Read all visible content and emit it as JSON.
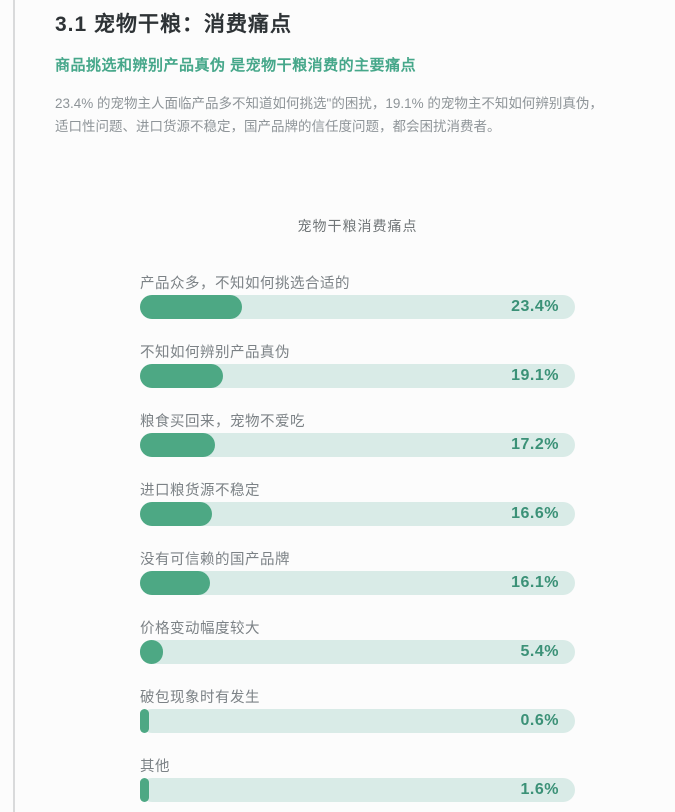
{
  "page": {
    "title": "3.1 宠物干粮：消费痛点",
    "subtitle": "商品挑选和辨别产品真伪 是宠物干粮消费的主要痛点",
    "body_line1": "23.4% 的宠物主人面临产品多不知道如何挑选\"的困扰，19.1% 的宠物主不知如何辨别真伪，",
    "body_line2": "适口性问题、进口货源不稳定，国产品牌的信任度问题，都会困扰消费者。"
  },
  "chart_data": {
    "type": "bar",
    "orientation": "horizontal",
    "title": "宠物干粮消费痛点",
    "categories": [
      "产品众多，不知如何挑选合适的",
      "不知如何辨别产品真伪",
      "粮食买回来，宠物不爱吃",
      "进口粮货源不稳定",
      "没有可信赖的国产品牌",
      "价格变动幅度较大",
      "破包现象时有发生",
      "其他"
    ],
    "values": [
      23.4,
      19.1,
      17.2,
      16.6,
      16.1,
      5.4,
      0.6,
      1.6
    ],
    "value_labels": [
      "23.4%",
      "19.1%",
      "17.2%",
      "16.6%",
      "16.1%",
      "5.4%",
      "0.6%",
      "1.6%"
    ],
    "xlim": [
      0,
      100
    ],
    "grid": false,
    "legend": "none",
    "colors": {
      "bar_fill": "#4da884",
      "bar_track": "#d9ebe7",
      "value_text": "#3b9177",
      "category_text": "#7c8286",
      "accent_green": "#46a78a"
    }
  }
}
